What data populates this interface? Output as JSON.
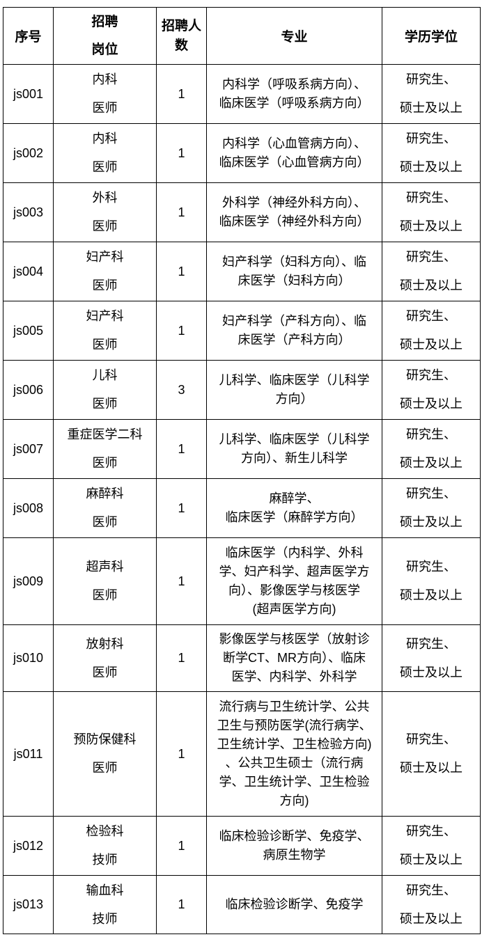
{
  "headers": {
    "id": "序号",
    "post": [
      "招聘",
      "岗位"
    ],
    "count": [
      "招聘人",
      "数"
    ],
    "major": "专业",
    "degree": "学历学位"
  },
  "rows": [
    {
      "id": "js001",
      "post": [
        "内科",
        "医师"
      ],
      "count": "1",
      "major": [
        "内科学（呼吸系病方向）、",
        "临床医学（呼吸系病方向）"
      ],
      "degree": [
        "研究生、",
        "硕士及以上"
      ]
    },
    {
      "id": "js002",
      "post": [
        "内科",
        "医师"
      ],
      "count": "1",
      "major": [
        "内科学（心血管病方向）、",
        "临床医学（心血管病方向）"
      ],
      "degree": [
        "研究生、",
        "硕士及以上"
      ]
    },
    {
      "id": "js003",
      "post": [
        "外科",
        "医师"
      ],
      "count": "1",
      "major": [
        "外科学（神经外科方向）、",
        "临床医学（神经外科方向）"
      ],
      "degree": [
        "研究生、",
        "硕士及以上"
      ]
    },
    {
      "id": "js004",
      "post": [
        "妇产科",
        "医师"
      ],
      "count": "1",
      "major": [
        "妇产科学（妇科方向）、临",
        "床医学（妇科方向）"
      ],
      "degree": [
        "研究生、",
        "硕士及以上"
      ]
    },
    {
      "id": "js005",
      "post": [
        "妇产科",
        "医师"
      ],
      "count": "1",
      "major": [
        "妇产科学（产科方向）、临",
        "床医学（产科方向）"
      ],
      "degree": [
        "研究生、",
        "硕士及以上"
      ]
    },
    {
      "id": "js006",
      "post": [
        "儿科",
        "医师"
      ],
      "count": "3",
      "major": [
        "儿科学、临床医学（儿科学",
        "方向）"
      ],
      "degree": [
        "研究生、",
        "硕士及以上"
      ]
    },
    {
      "id": "js007",
      "post": [
        "重症医学二科",
        "医师"
      ],
      "count": "1",
      "major": [
        "儿科学、临床医学（儿科学",
        "方向）、新生儿科学"
      ],
      "degree": [
        "研究生、",
        "硕士及以上"
      ]
    },
    {
      "id": "js008",
      "post": [
        "麻醉科",
        "医师"
      ],
      "count": "1",
      "major": [
        "麻醉学、",
        "临床医学（麻醉学方向）"
      ],
      "degree": [
        "研究生、",
        "硕士及以上"
      ]
    },
    {
      "id": "js009",
      "post": [
        "超声科",
        "医师"
      ],
      "count": "1",
      "major": [
        "临床医学（内科学、外科",
        "学、妇产科学、超声医学方",
        "向）、影像医学与核医学",
        "(超声医学方向)"
      ],
      "degree": [
        "研究生、",
        "硕士及以上"
      ]
    },
    {
      "id": "js010",
      "post": [
        "放射科",
        "医师"
      ],
      "count": "1",
      "major": [
        "影像医学与核医学（放射诊",
        "断学CT、MR方向）、临床",
        "医学、内科学、外科学"
      ],
      "degree": [
        "研究生、",
        "硕士及以上"
      ]
    },
    {
      "id": "js011",
      "post": [
        "预防保健科",
        "医师"
      ],
      "count": "1",
      "major": [
        "流行病与卫生统计学、公共",
        "卫生与预防医学(流行病学、",
        "卫生统计学、卫生检验方向)",
        "、公共卫生硕士（流行病",
        "学、卫生统计学、卫生检验",
        "方向)"
      ],
      "degree": [
        "研究生、",
        "硕士及以上"
      ]
    },
    {
      "id": "js012",
      "post": [
        "检验科",
        "技师"
      ],
      "count": "1",
      "major": [
        "临床检验诊断学、免疫学、",
        "病原生物学"
      ],
      "degree": [
        "研究生、",
        "硕士及以上"
      ]
    },
    {
      "id": "js013",
      "post": [
        "输血科",
        "技师"
      ],
      "count": "1",
      "major": [
        "临床检验诊断学、免疫学"
      ],
      "degree": [
        "研究生、",
        "硕士及以上"
      ]
    }
  ]
}
